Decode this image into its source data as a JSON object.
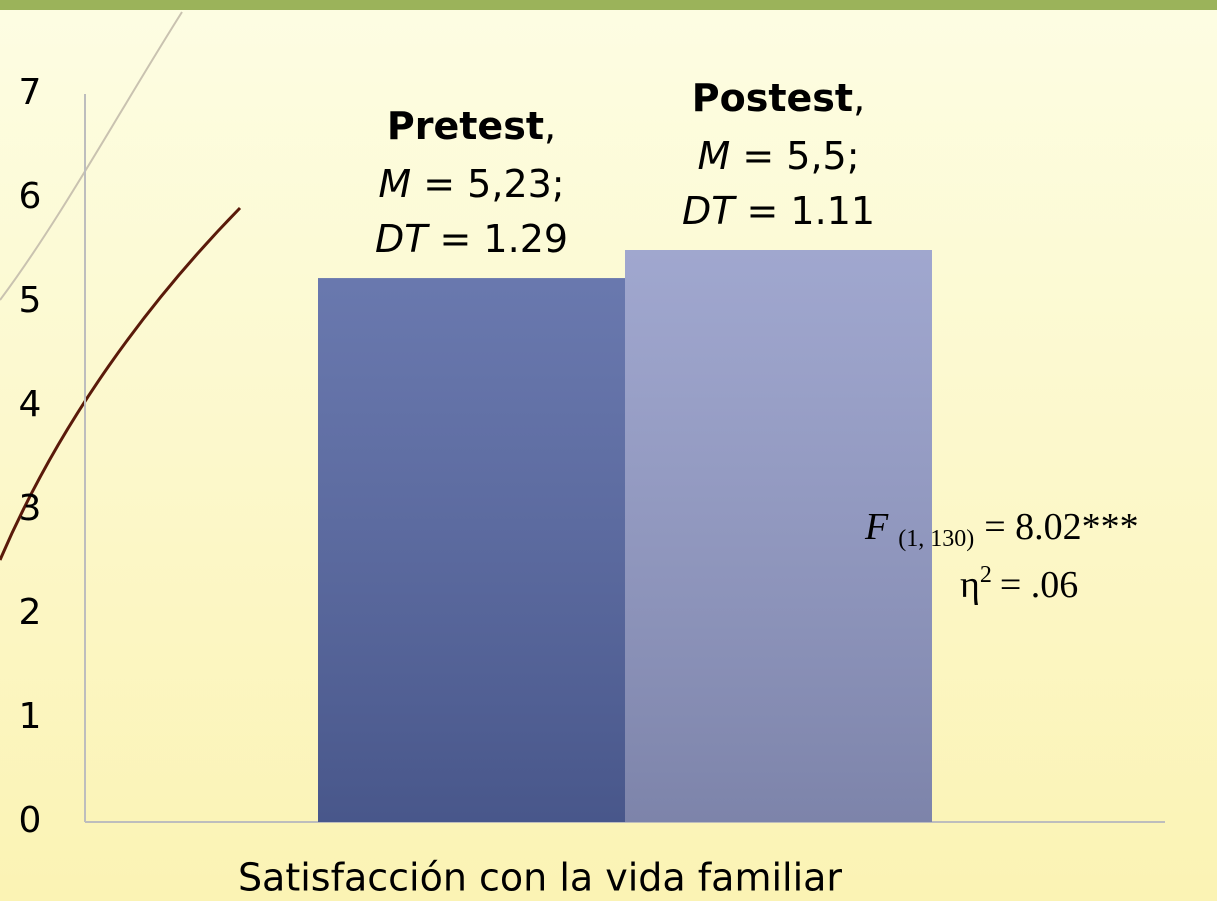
{
  "chart_data": {
    "type": "bar",
    "categories": [
      "Satisfacción con la vida familiar"
    ],
    "series": [
      {
        "name": "Pretest",
        "color": "#5566a3",
        "values": [
          5.23
        ],
        "value_labels": [
          "M = 5,23;"
        ],
        "sd_labels": [
          "DT = 1.29"
        ]
      },
      {
        "name": "Postest",
        "color": "#939bc8",
        "values": [
          5.5
        ],
        "value_labels": [
          "M = 5,5;"
        ],
        "sd_labels": [
          "DT = 1.11"
        ]
      }
    ],
    "label_separator": ",",
    "ylim": [
      0,
      7
    ],
    "yticks": [
      0,
      1,
      2,
      3,
      4,
      5,
      6,
      7
    ],
    "grid": false,
    "annotation": {
      "stat": "F",
      "df": "(1, 130)",
      "result": "= 8.02***",
      "effect_symbol": "η",
      "effect_power": "2",
      "effect_result": "= .06"
    }
  }
}
